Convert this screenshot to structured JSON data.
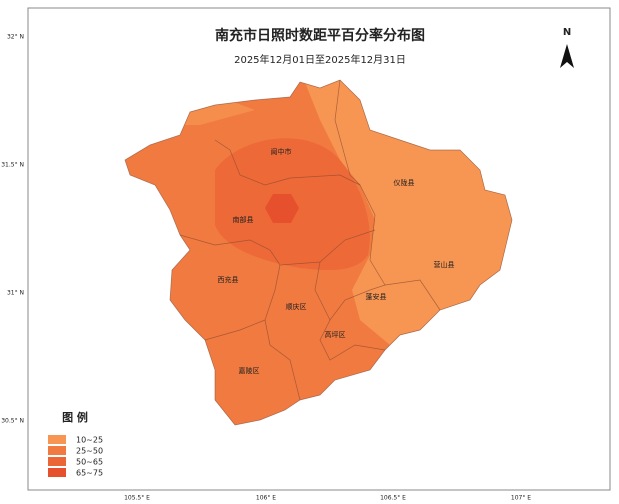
{
  "title": "南充市日照时数距平百分率分布图",
  "subtitle": "2025年12月01日至2025年12月31日",
  "north": "N",
  "lat_labels": [
    "32° N",
    "31.5° N",
    "31° N",
    "30.5° N"
  ],
  "lon_labels": [
    "105.5° E",
    "106° E",
    "106.5° E",
    "107° E"
  ],
  "regions": [
    "阆中市",
    "仪陇县",
    "南部县",
    "营山县",
    "西充县",
    "蓬安县",
    "顺庆区",
    "高坪区",
    "嘉陵区"
  ],
  "legend": {
    "title": "图 例",
    "items": [
      {
        "label": "10~25",
        "color": "#f79552"
      },
      {
        "label": "25~50",
        "color": "#f07a40"
      },
      {
        "label": "50~65",
        "color": "#ec6536"
      },
      {
        "label": "65~75",
        "color": "#e6502c"
      }
    ]
  }
}
